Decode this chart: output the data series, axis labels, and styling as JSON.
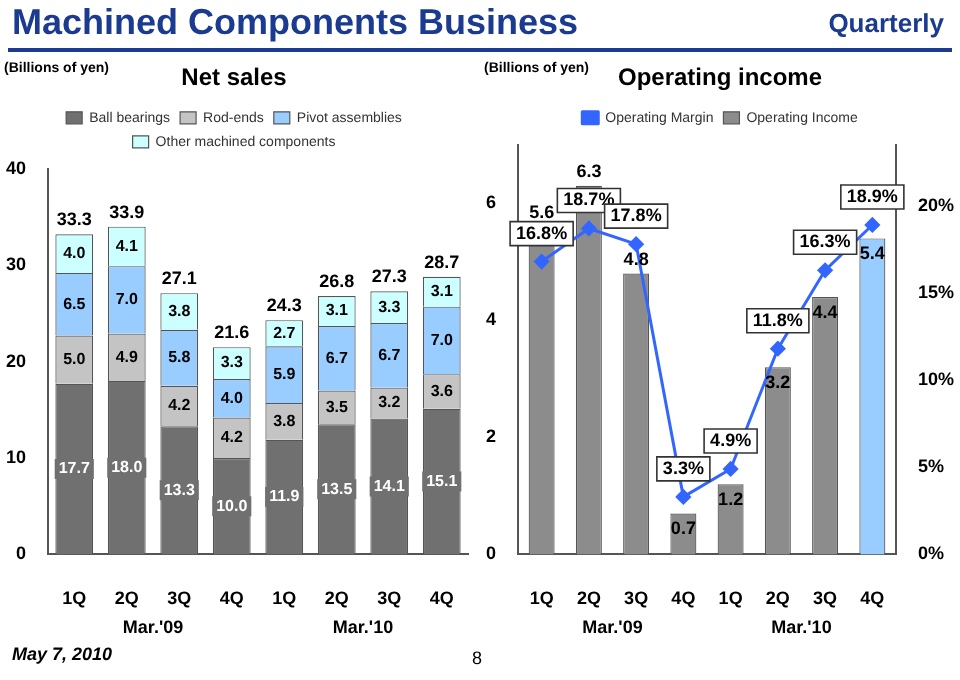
{
  "chart_data": [
    {
      "type": "other",
      "title": "Machined Components Business",
      "annotations": [
        "Quarterly",
        "May 7, 2010",
        "8"
      ]
    },
    {
      "type": "bar",
      "title": "Net sales",
      "ylabel": "(Billions of yen)",
      "categories": [
        "1Q",
        "2Q",
        "3Q",
        "4Q",
        "1Q",
        "2Q",
        "3Q",
        "4Q"
      ],
      "stacked": true,
      "legend": "top",
      "ylim": [
        0,
        40
      ],
      "yticks": [
        0,
        10,
        20,
        30,
        40
      ],
      "series": [
        {
          "name": "Ball bearings",
          "color": "#707070",
          "values": [
            17.7,
            18.0,
            13.3,
            10.0,
            11.9,
            13.5,
            14.1,
            15.1
          ],
          "value_labels": [
            "17.7",
            "18.0",
            "13.3",
            "10.0",
            "11.9",
            "13.5",
            "14.1",
            "15.1"
          ]
        },
        {
          "name": "Rod-ends",
          "color": "#c4c4c4",
          "values": [
            5.0,
            4.9,
            4.2,
            4.2,
            3.8,
            3.5,
            3.2,
            3.6
          ],
          "value_labels": [
            "5.0",
            "4.9",
            "4.2",
            "4.2",
            "3.8",
            "3.5",
            "3.2",
            "3.6"
          ]
        },
        {
          "name": "Pivot assemblies",
          "color": "#99ccff",
          "values": [
            6.5,
            7.0,
            5.8,
            4.0,
            5.9,
            6.7,
            6.7,
            7.0
          ],
          "value_labels": [
            "6.5",
            "7.0",
            "5.8",
            "4.0",
            "5.9",
            "6.7",
            "6.7",
            "7.0"
          ]
        },
        {
          "name": "Other machined components",
          "color": "#ccffff",
          "values": [
            4.0,
            4.1,
            3.8,
            3.3,
            2.7,
            3.1,
            3.3,
            3.1
          ],
          "value_labels": [
            "4.0",
            "4.1",
            "3.8",
            "3.3",
            "2.7",
            "3.1",
            "3.3",
            "3.1"
          ]
        }
      ],
      "totals": [
        "33.3",
        "33.9",
        "27.1",
        "21.6",
        "24.3",
        "26.8",
        "27.3",
        "28.7"
      ],
      "annotations": [
        "Mar.'09",
        "Mar.'10"
      ]
    },
    {
      "type": "bar",
      "title": "Operating income",
      "ylabel": "(Billions of yen)",
      "categories": [
        "1Q",
        "2Q",
        "3Q",
        "4Q",
        "1Q",
        "2Q",
        "3Q",
        "4Q"
      ],
      "legend": "top",
      "marker": "diamond",
      "data_labels": true,
      "ylim": [
        0,
        7
      ],
      "yticks": [
        0,
        2,
        4,
        6
      ],
      "y2lim": [
        0,
        23.5
      ],
      "y2ticks": [
        {
          "value": 0,
          "label": "0%"
        },
        {
          "value": 5,
          "label": "5%"
        },
        {
          "value": 10,
          "label": "10%"
        },
        {
          "value": 15,
          "label": "15%"
        },
        {
          "value": 20,
          "label": "20%"
        }
      ],
      "series": [
        {
          "name": "Operating Income",
          "colors": [
            "#8c8c8c",
            "#8c8c8c",
            "#8c8c8c",
            "#8c8c8c",
            "#8c8c8c",
            "#8c8c8c",
            "#8c8c8c",
            "#99ccff"
          ],
          "values": [
            5.6,
            6.3,
            4.8,
            0.7,
            1.2,
            3.2,
            4.4,
            5.4
          ]
        },
        {
          "name": "Operating Margin",
          "type": "line",
          "axis": "y2",
          "color": "#3366ff",
          "values": [
            16.8,
            18.7,
            17.8,
            3.3,
            4.9,
            11.8,
            16.3,
            18.9
          ],
          "value_labels": [
            "16.8%",
            "18.7%",
            "17.8%",
            "3.3%",
            "4.9%",
            "11.8%",
            "16.3%",
            "18.9%"
          ]
        }
      ],
      "annotations": [
        "Mar.'09",
        "Mar.'10"
      ]
    }
  ]
}
